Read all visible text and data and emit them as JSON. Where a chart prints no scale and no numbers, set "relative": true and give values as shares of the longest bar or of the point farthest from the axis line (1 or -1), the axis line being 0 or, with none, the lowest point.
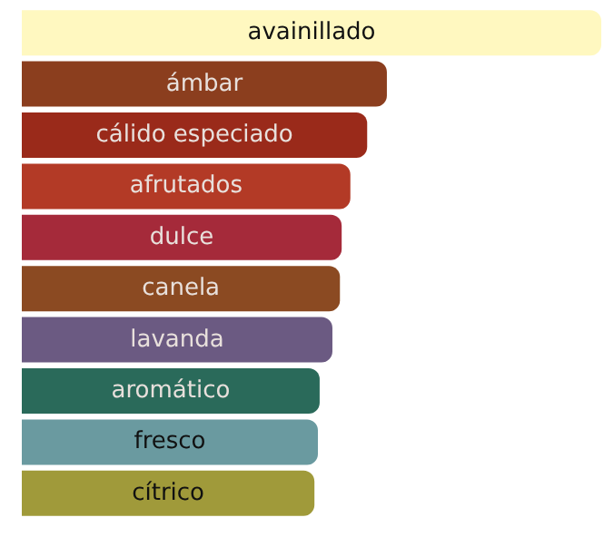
{
  "chart_data": {
    "type": "bar",
    "orientation": "horizontal",
    "relative": true,
    "categories": [
      "avainillado",
      "ámbar",
      "cálido especiado",
      "afrutados",
      "dulce",
      "canela",
      "lavanda",
      "aromático",
      "fresco",
      "cítrico"
    ],
    "values": [
      1,
      0.63,
      0.596,
      0.567,
      0.552,
      0.549,
      0.536,
      0.514,
      0.511,
      0.505
    ],
    "colors": [
      "#fff8c0",
      "#8b3e1e",
      "#9a2a1a",
      "#b33a26",
      "#a52a3a",
      "#8b4a22",
      "#6b5a82",
      "#2a6a5a",
      "#6a9aa0",
      "#a09a3a"
    ]
  }
}
